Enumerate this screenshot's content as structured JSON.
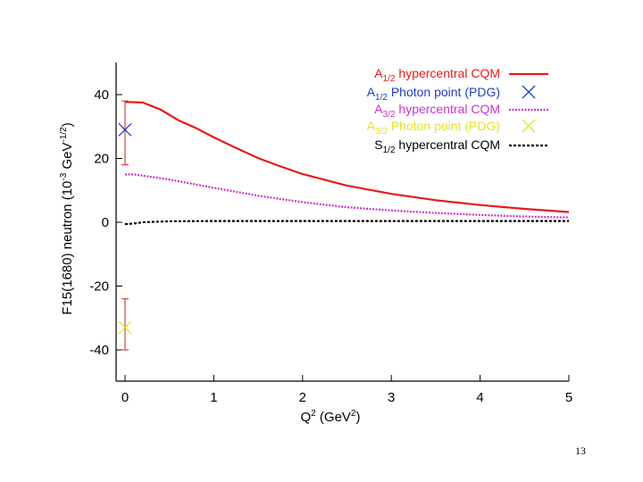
{
  "page_number": "13",
  "chart_data": {
    "type": "line",
    "title": "",
    "xlabel": "Q",
    "xlabel_sup": "2",
    "xlabel_units": " (GeV",
    "xlabel_units_sup": "2",
    "xlabel_close": ")",
    "ylabel": "F15(1680) neutron (10",
    "ylabel_sup1": "-3",
    "ylabel_mid": " GeV",
    "ylabel_sup2": "-1/2",
    "ylabel_close": ")",
    "xlim": [
      0,
      5
    ],
    "ylim": [
      -50,
      50
    ],
    "x_ticks": [
      "0",
      "1",
      "2",
      "3",
      "4",
      "5"
    ],
    "y_ticks": [
      "40",
      "20",
      "0",
      "-20",
      "-40"
    ],
    "y_tick_values": [
      40,
      20,
      0,
      -20,
      -40
    ],
    "legend_position": "top-right",
    "series": [
      {
        "name": "A",
        "sub": "1/2",
        "suffix": " hypercentral CQM",
        "color": "#e41a1c",
        "style": "solid",
        "x": [
          0,
          0.2,
          0.4,
          0.6,
          0.8,
          1.0,
          1.25,
          1.5,
          1.75,
          2.0,
          2.5,
          3.0,
          3.5,
          4.0,
          4.5,
          5.0
        ],
        "values": [
          37.7,
          37.5,
          35.3,
          32.0,
          29.5,
          26.6,
          23.3,
          20.1,
          17.5,
          15.1,
          11.5,
          8.9,
          6.9,
          5.4,
          4.2,
          3.2
        ]
      },
      {
        "name": "A",
        "sub": "1/2",
        "suffix": " Photon point (PDG)",
        "color": "#1f3fbf",
        "style": "point",
        "x": [
          0
        ],
        "values": [
          29
        ],
        "error_low": 18,
        "error_high": 38
      },
      {
        "name": "A",
        "sub": "3/2",
        "suffix": " hypercentral CQM",
        "color": "#cc33cc",
        "style": "dotted",
        "x": [
          0,
          0.1,
          0.5,
          1.0,
          1.5,
          2.0,
          2.5,
          3.0,
          3.5,
          4.0,
          4.5,
          5.0
        ],
        "values": [
          15.0,
          15.0,
          13.4,
          10.8,
          8.3,
          6.3,
          4.7,
          3.7,
          2.9,
          2.3,
          1.8,
          1.5
        ]
      },
      {
        "name": "A",
        "sub": "3/2",
        "suffix": " Photon point (PDG)",
        "color": "#e5e22a",
        "style": "point",
        "x": [
          0
        ],
        "values": [
          -33
        ],
        "error_low": -40,
        "error_high": -24
      },
      {
        "name": "S",
        "sub": "1/2",
        "suffix": " hypercentral CQM",
        "color": "#000000",
        "style": "dashed",
        "x": [
          0,
          0.1,
          0.2,
          0.5,
          1.0,
          2.0,
          3.0,
          4.0,
          5.0
        ],
        "values": [
          -0.6,
          -0.4,
          0.0,
          0.3,
          0.4,
          0.4,
          0.4,
          0.4,
          0.4
        ]
      }
    ]
  }
}
